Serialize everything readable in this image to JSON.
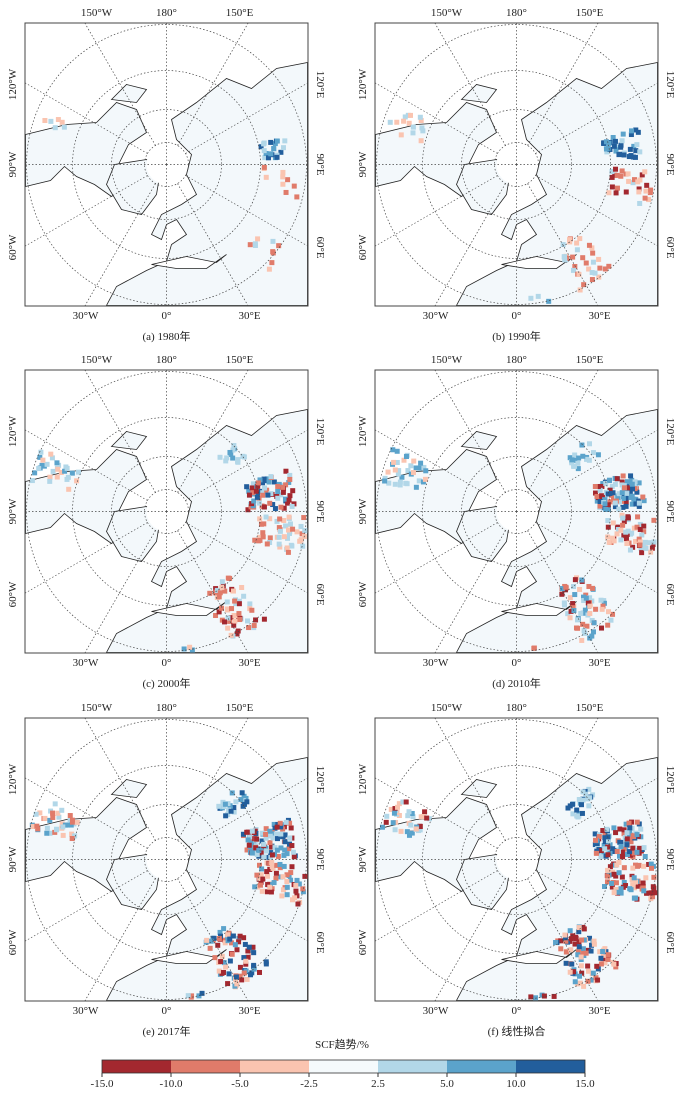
{
  "figure": {
    "axis_labels": {
      "top": [
        "150°W",
        "180°",
        "150°E"
      ],
      "bottom": [
        "30°W",
        "0°",
        "30°E"
      ],
      "left": [
        "120°W",
        "90°W",
        "60°W"
      ],
      "right": [
        "120°E",
        "90°E",
        "60°E"
      ]
    },
    "panels": [
      {
        "caption": "(a) 1980年",
        "hotspots": [
          {
            "lon": 98,
            "lat": 57,
            "spread": 4,
            "n": 22,
            "cls": [
              2,
              1,
              3
            ]
          },
          {
            "lon": 82,
            "lat": 55,
            "spread": 6,
            "n": 10,
            "cls": [
              -1,
              -2
            ]
          },
          {
            "lon": 50,
            "lat": 52,
            "spread": 5,
            "n": 10,
            "cls": [
              -1,
              1,
              -2
            ]
          },
          {
            "lon": -110,
            "lat": 55,
            "spread": 5,
            "n": 6,
            "cls": [
              1,
              -1
            ]
          },
          {
            "lon": 10,
            "lat": 48,
            "spread": 4,
            "n": 8,
            "cls": [
              1,
              -1
            ]
          }
        ]
      },
      {
        "caption": "(b) 1990年",
        "hotspots": [
          {
            "lon": 100,
            "lat": 57,
            "spread": 6,
            "n": 40,
            "cls": [
              2,
              3,
              1
            ]
          },
          {
            "lon": 80,
            "lat": 55,
            "spread": 7,
            "n": 30,
            "cls": [
              -1,
              -2,
              -3,
              1
            ]
          },
          {
            "lon": 35,
            "lat": 55,
            "spread": 8,
            "n": 35,
            "cls": [
              -1,
              -2,
              1
            ]
          },
          {
            "lon": -110,
            "lat": 55,
            "spread": 6,
            "n": 15,
            "cls": [
              -1,
              1
            ]
          },
          {
            "lon": 10,
            "lat": 48,
            "spread": 5,
            "n": 12,
            "cls": [
              1,
              2
            ]
          }
        ]
      },
      {
        "caption": "(c) 2000年",
        "hotspots": [
          {
            "lon": 100,
            "lat": 58,
            "spread": 8,
            "n": 80,
            "cls": [
              2,
              1,
              3,
              -2,
              -3
            ]
          },
          {
            "lon": 80,
            "lat": 55,
            "spread": 8,
            "n": 50,
            "cls": [
              -1,
              -2,
              1
            ]
          },
          {
            "lon": 35,
            "lat": 55,
            "spread": 9,
            "n": 60,
            "cls": [
              -1,
              -2,
              -3,
              1
            ]
          },
          {
            "lon": -110,
            "lat": 55,
            "spread": 7,
            "n": 30,
            "cls": [
              -1,
              1,
              2
            ]
          },
          {
            "lon": 10,
            "lat": 47,
            "spread": 5,
            "n": 20,
            "cls": [
              1,
              2,
              -1
            ]
          },
          {
            "lon": 130,
            "lat": 62,
            "spread": 5,
            "n": 15,
            "cls": [
              1,
              2
            ]
          }
        ]
      },
      {
        "caption": "(d) 2010年",
        "hotspots": [
          {
            "lon": 100,
            "lat": 58,
            "spread": 8,
            "n": 100,
            "cls": [
              2,
              3,
              1,
              -2,
              -3
            ]
          },
          {
            "lon": 80,
            "lat": 55,
            "spread": 8,
            "n": 60,
            "cls": [
              -1,
              -2,
              -3,
              1
            ]
          },
          {
            "lon": 35,
            "lat": 55,
            "spread": 9,
            "n": 70,
            "cls": [
              -1,
              -2,
              -3,
              1,
              2
            ]
          },
          {
            "lon": -110,
            "lat": 55,
            "spread": 7,
            "n": 35,
            "cls": [
              -1,
              1,
              2
            ]
          },
          {
            "lon": 10,
            "lat": 47,
            "spread": 5,
            "n": 25,
            "cls": [
              1,
              2,
              -2
            ]
          },
          {
            "lon": 130,
            "lat": 62,
            "spread": 5,
            "n": 20,
            "cls": [
              1,
              2
            ]
          }
        ]
      },
      {
        "caption": "(e) 2017年",
        "hotspots": [
          {
            "lon": 100,
            "lat": 58,
            "spread": 8,
            "n": 110,
            "cls": [
              2,
              3,
              1,
              -2,
              -3
            ]
          },
          {
            "lon": 80,
            "lat": 55,
            "spread": 8,
            "n": 70,
            "cls": [
              -1,
              -2,
              -3,
              2
            ]
          },
          {
            "lon": 35,
            "lat": 55,
            "spread": 9,
            "n": 80,
            "cls": [
              -1,
              -2,
              -3,
              2,
              3
            ]
          },
          {
            "lon": -110,
            "lat": 55,
            "spread": 7,
            "n": 40,
            "cls": [
              -1,
              -2,
              1,
              2
            ]
          },
          {
            "lon": 10,
            "lat": 47,
            "spread": 5,
            "n": 30,
            "cls": [
              1,
              2,
              3,
              -2
            ]
          },
          {
            "lon": 130,
            "lat": 62,
            "spread": 5,
            "n": 25,
            "cls": [
              1,
              2,
              3
            ]
          }
        ]
      },
      {
        "caption": "(f) 线性拟合",
        "hotspots": [
          {
            "lon": 100,
            "lat": 58,
            "spread": 8,
            "n": 110,
            "cls": [
              2,
              3,
              1,
              -2,
              -3
            ]
          },
          {
            "lon": 80,
            "lat": 55,
            "spread": 8,
            "n": 70,
            "cls": [
              -1,
              -3,
              -2,
              2
            ]
          },
          {
            "lon": 35,
            "lat": 55,
            "spread": 9,
            "n": 90,
            "cls": [
              -2,
              -3,
              -1,
              2,
              3
            ]
          },
          {
            "lon": -110,
            "lat": 55,
            "spread": 7,
            "n": 40,
            "cls": [
              -1,
              -3,
              1,
              2
            ]
          },
          {
            "lon": 10,
            "lat": 47,
            "spread": 5,
            "n": 30,
            "cls": [
              1,
              2,
              3,
              -3
            ]
          },
          {
            "lon": 130,
            "lat": 62,
            "spread": 5,
            "n": 25,
            "cls": [
              1,
              2,
              3
            ]
          }
        ]
      }
    ]
  },
  "colorbar": {
    "title": "SCF趋势/%",
    "ticks": [
      "-15.0",
      "-10.0",
      "-5.0",
      "-2.5",
      "2.5",
      "5.0",
      "10.0",
      "15.0"
    ],
    "bins": [
      {
        "range": [
          -15,
          -10
        ],
        "color": "#a3282f"
      },
      {
        "range": [
          -10,
          -5
        ],
        "color": "#e07b6a"
      },
      {
        "range": [
          -5,
          -2.5
        ],
        "color": "#fac4b0"
      },
      {
        "range": [
          -2.5,
          2.5
        ],
        "color": "#f5fafc"
      },
      {
        "range": [
          2.5,
          5
        ],
        "color": "#b2d7e8"
      },
      {
        "range": [
          5,
          10
        ],
        "color": "#5ba3cb"
      },
      {
        "range": [
          10,
          15
        ],
        "color": "#225e9c"
      }
    ]
  }
}
